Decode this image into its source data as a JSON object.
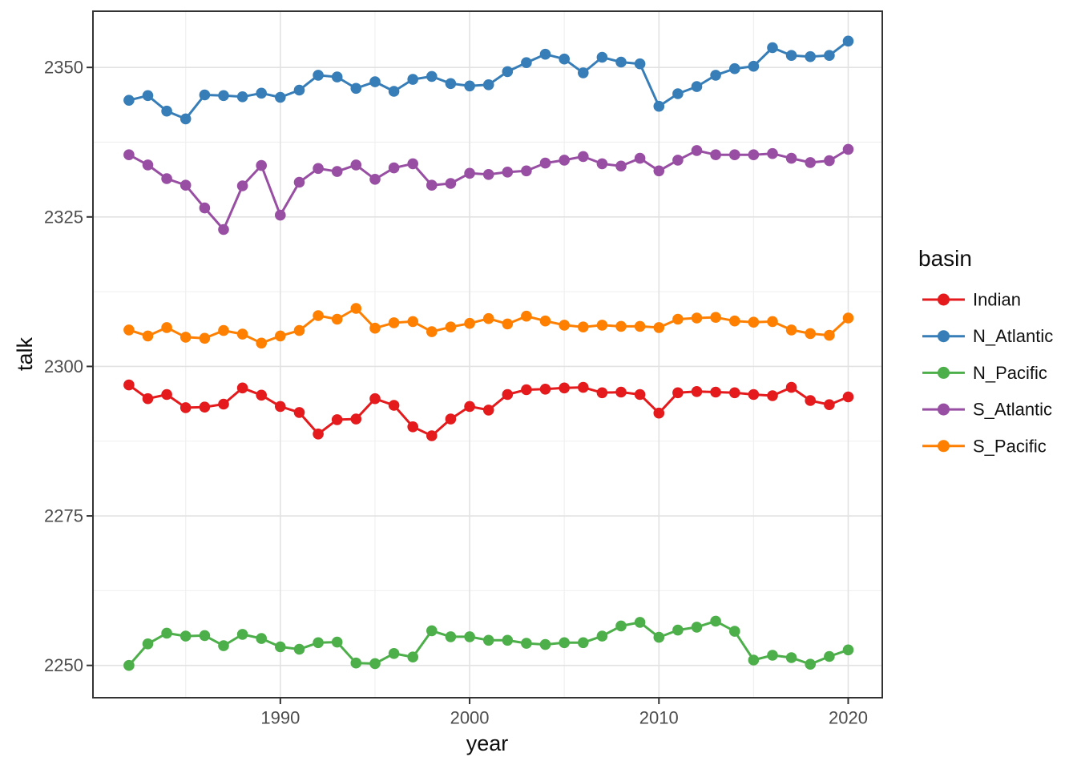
{
  "chart_data": {
    "type": "line",
    "title": "",
    "xlabel": "year",
    "ylabel": "talk",
    "legend": {
      "title": "basin",
      "position": "right"
    },
    "x": [
      1982,
      1983,
      1984,
      1985,
      1986,
      1987,
      1988,
      1989,
      1990,
      1991,
      1992,
      1993,
      1994,
      1995,
      1996,
      1997,
      1998,
      1999,
      2000,
      2001,
      2002,
      2003,
      2004,
      2005,
      2006,
      2007,
      2008,
      2009,
      2010,
      2011,
      2012,
      2013,
      2014,
      2015,
      2016,
      2017,
      2018,
      2019,
      2020
    ],
    "series": [
      {
        "name": "Indian",
        "color": "#E41A1C",
        "values": [
          2296.9,
          2294.6,
          2295.3,
          2293.1,
          2293.2,
          2293.7,
          2296.4,
          2295.2,
          2293.3,
          2292.3,
          2288.7,
          2291.1,
          2291.2,
          2294.6,
          2293.5,
          2289.9,
          2288.4,
          2291.2,
          2293.3,
          2292.7,
          2295.3,
          2296.1,
          2296.2,
          2296.4,
          2296.5,
          2295.6,
          2295.7,
          2295.3,
          2292.2,
          2295.6,
          2295.8,
          2295.7,
          2295.6,
          2295.3,
          2295.1,
          2296.5,
          2294.3,
          2293.6,
          2294.9
        ]
      },
      {
        "name": "N_Atlantic",
        "color": "#377EB8",
        "values": [
          2344.5,
          2345.3,
          2342.7,
          2341.4,
          2345.4,
          2345.3,
          2345.1,
          2345.7,
          2345.0,
          2346.2,
          2348.7,
          2348.4,
          2346.5,
          2347.6,
          2346.0,
          2348.0,
          2348.5,
          2347.3,
          2346.9,
          2347.1,
          2349.3,
          2350.8,
          2352.2,
          2351.4,
          2349.1,
          2351.7,
          2350.9,
          2350.6,
          2343.5,
          2345.6,
          2346.8,
          2348.7,
          2349.8,
          2350.2,
          2353.3,
          2352.0,
          2351.8,
          2352.0,
          2354.4
        ]
      },
      {
        "name": "N_Pacific",
        "color": "#4DAF4A",
        "values": [
          2250.0,
          2253.6,
          2255.4,
          2254.9,
          2255.0,
          2253.3,
          2255.2,
          2254.5,
          2253.1,
          2252.7,
          2253.8,
          2253.9,
          2250.4,
          2250.3,
          2252.0,
          2251.4,
          2255.8,
          2254.8,
          2254.8,
          2254.2,
          2254.2,
          2253.7,
          2253.5,
          2253.8,
          2253.8,
          2254.9,
          2256.6,
          2257.2,
          2254.7,
          2255.9,
          2256.4,
          2257.4,
          2255.7,
          2250.9,
          2251.7,
          2251.3,
          2250.2,
          2251.5,
          2252.6
        ]
      },
      {
        "name": "S_Atlantic",
        "color": "#984EA3",
        "values": [
          2335.4,
          2333.7,
          2331.4,
          2330.3,
          2326.5,
          2322.9,
          2330.2,
          2333.6,
          2325.3,
          2330.8,
          2333.1,
          2332.6,
          2333.7,
          2331.3,
          2333.2,
          2333.9,
          2330.3,
          2330.6,
          2332.3,
          2332.1,
          2332.5,
          2332.7,
          2334.0,
          2334.5,
          2335.1,
          2333.9,
          2333.5,
          2334.8,
          2332.7,
          2334.5,
          2336.1,
          2335.4,
          2335.4,
          2335.4,
          2335.6,
          2334.8,
          2334.1,
          2334.4,
          2336.3
        ]
      },
      {
        "name": "S_Pacific",
        "color": "#FF7F00",
        "values": [
          2306.1,
          2305.1,
          2306.5,
          2304.9,
          2304.7,
          2306.0,
          2305.4,
          2303.9,
          2305.1,
          2306.0,
          2308.5,
          2307.9,
          2309.7,
          2306.4,
          2307.3,
          2307.5,
          2305.8,
          2306.6,
          2307.2,
          2308.0,
          2307.1,
          2308.4,
          2307.6,
          2306.9,
          2306.6,
          2306.9,
          2306.7,
          2306.7,
          2306.5,
          2307.9,
          2308.1,
          2308.2,
          2307.6,
          2307.4,
          2307.5,
          2306.1,
          2305.5,
          2305.2,
          2308.1
        ]
      }
    ],
    "x_ticks": [
      1990,
      2000,
      2010,
      2020
    ],
    "y_ticks": [
      2250,
      2275,
      2300,
      2325,
      2350
    ],
    "x_minor_ticks": [
      1985,
      1995,
      2005,
      2015
    ],
    "y_minor_ticks": [
      2262.5,
      2287.5,
      2312.5,
      2337.5
    ],
    "xlim": [
      1980.1,
      2021.8
    ],
    "ylim": [
      2244.6,
      2359.4
    ],
    "grid": "major+minor",
    "legend_position": "right"
  },
  "style": {
    "background": "#FFFFFF",
    "panel_background": "#FFFFFF",
    "panel_border": "#333333",
    "grid_major": "#E2E2E2",
    "grid_minor": "#EFEFEF",
    "tick_mark_color": "#333333",
    "tick_label_color": "#4D4D4D",
    "axis_title_color": "#0D0D0D",
    "legend_text_color": "#111111"
  }
}
